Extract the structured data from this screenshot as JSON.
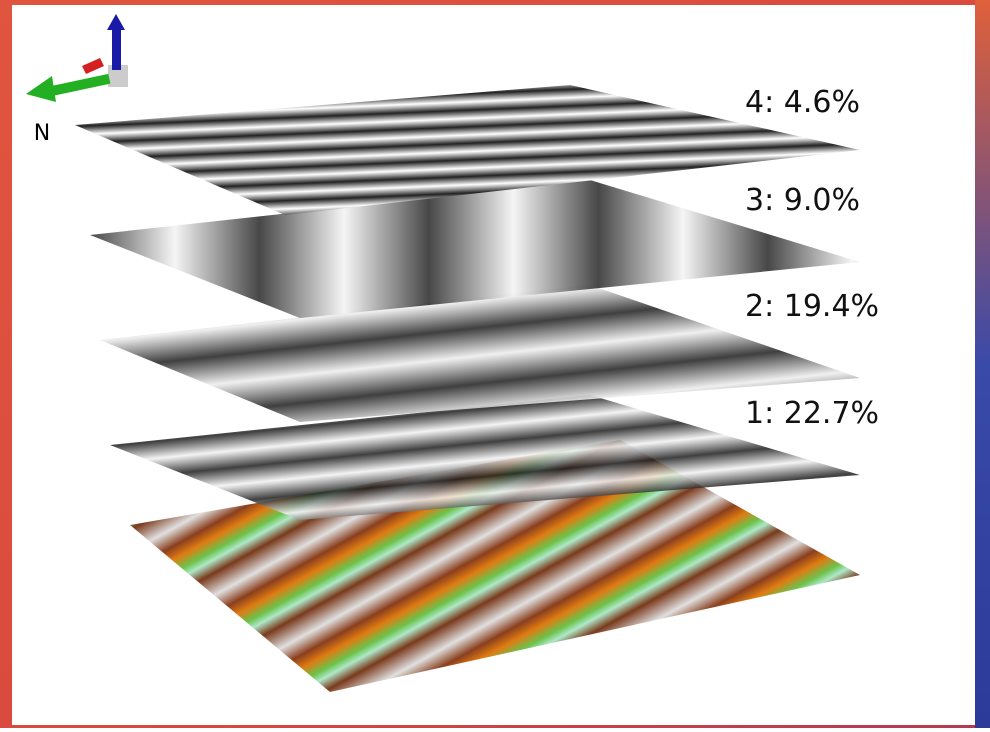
{
  "compass": {
    "north": "N"
  },
  "layers": [
    {
      "label": "4: 4.6%"
    },
    {
      "label": "3: 9.0%"
    },
    {
      "label": "2: 19.4%"
    },
    {
      "label": "1: 22.7%"
    }
  ]
}
